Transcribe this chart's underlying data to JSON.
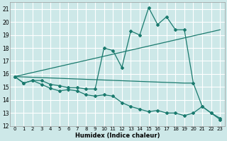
{
  "xlabel": "Humidex (Indice chaleur)",
  "background_color": "#cde8e8",
  "grid_color": "#ffffff",
  "line_color": "#1a7a6e",
  "xlim": [
    -0.5,
    23.5
  ],
  "ylim": [
    12,
    21.5
  ],
  "yticks": [
    12,
    13,
    14,
    15,
    16,
    17,
    18,
    19,
    20,
    21
  ],
  "xticks": [
    0,
    1,
    2,
    3,
    4,
    5,
    6,
    7,
    8,
    9,
    10,
    11,
    12,
    13,
    14,
    15,
    16,
    17,
    18,
    19,
    20,
    21,
    22,
    23
  ],
  "series1": [
    [
      0,
      15.8
    ],
    [
      1,
      15.3
    ],
    [
      2,
      15.5
    ],
    [
      3,
      15.2
    ],
    [
      4,
      14.9
    ],
    [
      5,
      14.7
    ],
    [
      6,
      14.8
    ],
    [
      7,
      14.7
    ],
    [
      8,
      14.4
    ],
    [
      9,
      14.3
    ],
    [
      10,
      14.4
    ],
    [
      11,
      14.3
    ],
    [
      12,
      13.8
    ],
    [
      13,
      13.5
    ],
    [
      14,
      13.3
    ],
    [
      15,
      13.1
    ],
    [
      16,
      13.2
    ],
    [
      17,
      13.0
    ],
    [
      18,
      13.0
    ],
    [
      19,
      12.8
    ],
    [
      20,
      13.0
    ],
    [
      21,
      13.5
    ],
    [
      22,
      13.0
    ],
    [
      23,
      12.6
    ]
  ],
  "series2": [
    [
      0,
      15.8
    ],
    [
      1,
      15.3
    ],
    [
      2,
      15.5
    ],
    [
      3,
      15.5
    ],
    [
      4,
      15.2
    ],
    [
      5,
      15.1
    ],
    [
      6,
      14.95
    ],
    [
      7,
      14.95
    ],
    [
      8,
      14.85
    ],
    [
      9,
      14.85
    ],
    [
      10,
      18.0
    ],
    [
      11,
      17.8
    ],
    [
      12,
      16.5
    ],
    [
      13,
      19.3
    ],
    [
      14,
      19.0
    ],
    [
      15,
      21.1
    ],
    [
      16,
      19.8
    ],
    [
      17,
      20.4
    ],
    [
      18,
      19.4
    ],
    [
      19,
      19.4
    ],
    [
      20,
      15.3
    ],
    [
      21,
      13.5
    ],
    [
      22,
      13.0
    ],
    [
      23,
      12.5
    ]
  ],
  "line_upper": [
    [
      0,
      15.8
    ],
    [
      23,
      19.4
    ]
  ],
  "line_flat": [
    [
      0,
      15.8
    ],
    [
      19,
      15.3
    ],
    [
      20,
      15.3
    ]
  ]
}
